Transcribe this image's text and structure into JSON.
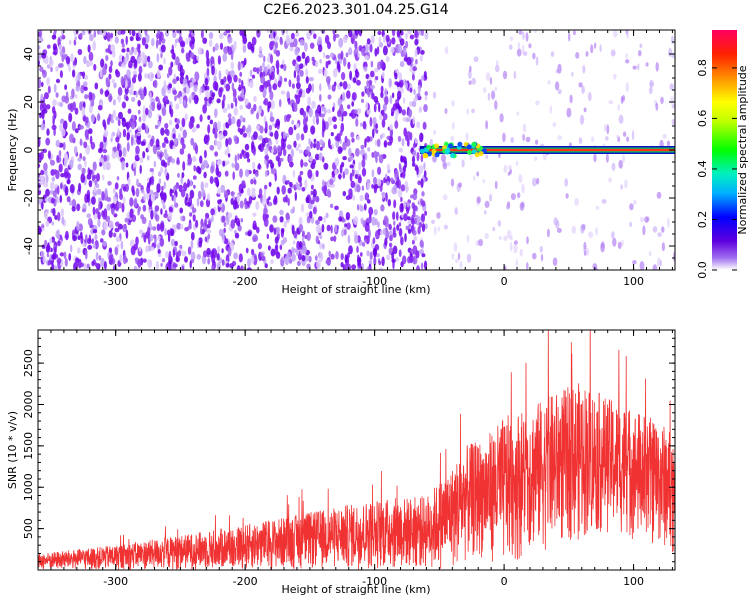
{
  "title": "C2E6.2023.301.04.25.G14",
  "chart_data": [
    {
      "type": "heatmap",
      "xlabel": "Height of straight line (km)",
      "ylabel": "Frequency (Hz)",
      "xlim": [
        -360,
        132
      ],
      "ylim": [
        -50,
        50
      ],
      "xticks": [
        -300,
        -200,
        -100,
        0,
        100
      ],
      "yticks": [
        -40,
        -20,
        0,
        20,
        40
      ],
      "xtick_labels": [
        "-300",
        "-200",
        "-100",
        "0",
        "100"
      ],
      "ytick_labels": [
        "-40",
        "-20",
        "0",
        "20",
        "40"
      ],
      "colorbar": {
        "label": "Normalized spectral amplitude",
        "range": [
          0,
          0.95
        ],
        "ticks": [
          0,
          0.2,
          0.4,
          0.6,
          0.8
        ],
        "tick_labels": [
          "0.0",
          "0.2",
          "0.4",
          "0.6",
          "0.8"
        ],
        "colormap": "rainbow (white-purple-blue-cyan-green-yellow-orange-red-magenta)"
      },
      "features": [
        {
          "description": "diffuse purple noise speckle",
          "x_range": [
            -360,
            -60
          ],
          "freq_range": [
            -50,
            50
          ],
          "amplitude": 0.1
        },
        {
          "description": "sparse faint speckle",
          "x_range": [
            -60,
            132
          ],
          "freq_range": [
            -50,
            50
          ],
          "amplitude": 0.05
        },
        {
          "description": "strong narrow line at 0 Hz",
          "x_range": [
            -65,
            132
          ],
          "freq_center": 0,
          "amplitude": 0.9
        }
      ],
      "grid": false
    },
    {
      "type": "line",
      "xlabel": "Height of straight line (km)",
      "ylabel": "SNR (10 * v/v)",
      "xlim": [
        -360,
        132
      ],
      "ylim": [
        0,
        2900
      ],
      "xticks": [
        -300,
        -200,
        -100,
        0,
        100
      ],
      "yticks": [
        500,
        1000,
        1500,
        2000,
        2500
      ],
      "xtick_labels": [
        "-300",
        "-200",
        "-100",
        "0",
        "100"
      ],
      "ytick_labels": [
        "500",
        "1000",
        "1500",
        "2000",
        "2500"
      ],
      "color": "#f03232",
      "envelope": {
        "x": [
          -360,
          -300,
          -250,
          -200,
          -150,
          -100,
          -60,
          -40,
          -30,
          -15,
          0,
          20,
          40,
          60,
          80,
          100,
          120,
          132
        ],
        "upper": [
          200,
          300,
          420,
          550,
          700,
          850,
          900,
          1250,
          1500,
          1600,
          1850,
          1980,
          2150,
          2280,
          2080,
          1950,
          1800,
          1650
        ],
        "lower": [
          0,
          0,
          0,
          0,
          0,
          0,
          0,
          0,
          80,
          150,
          0,
          200,
          250,
          350,
          450,
          350,
          250,
          200
        ]
      },
      "grid": false
    }
  ]
}
